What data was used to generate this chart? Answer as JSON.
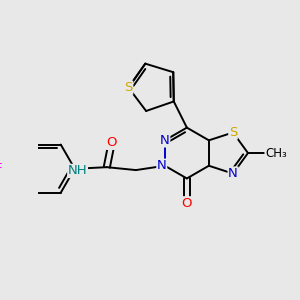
{
  "bg_color": "#e8e8e8",
  "C": "#000000",
  "N": "#0000cc",
  "O": "#ff0000",
  "S": "#ccaa00",
  "F": "#ff00ff",
  "H": "#008080",
  "bond_width": 1.4,
  "font_size": 9.5
}
